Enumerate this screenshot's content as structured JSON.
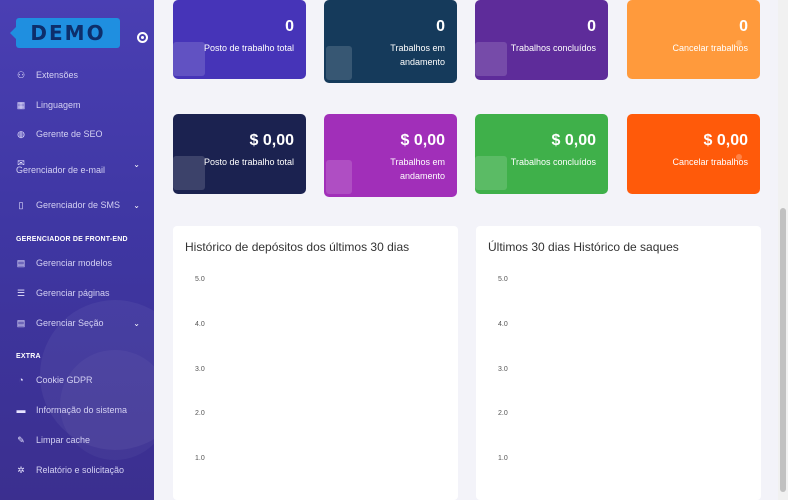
{
  "sidebar": {
    "logo": "DEMO",
    "items": [
      {
        "icon": "puzzle-icon",
        "glyph": "⚇",
        "label": "Extensões"
      },
      {
        "icon": "language-icon",
        "glyph": "▦",
        "label": "Linguagem"
      },
      {
        "icon": "globe-icon",
        "glyph": "◍",
        "label": "Gerente de SEO"
      },
      {
        "icon": "mail-icon",
        "glyph": "✉",
        "label": "Gerenciador de e-mail"
      },
      {
        "icon": "mobile-icon",
        "glyph": "▯",
        "label": "Gerenciador de SMS"
      },
      {
        "icon": "template-icon",
        "glyph": "▤",
        "label": "Gerenciar modelos"
      },
      {
        "icon": "list-icon",
        "glyph": "☰",
        "label": "Gerenciar páginas"
      },
      {
        "icon": "section-icon",
        "glyph": "▤",
        "label": "Gerenciar Seção"
      },
      {
        "icon": "cookie-icon",
        "glyph": "◔",
        "label": "Cookie GDPR"
      },
      {
        "icon": "server-icon",
        "glyph": "▬",
        "label": "Informação do sistema"
      },
      {
        "icon": "broom-icon",
        "glyph": "✎",
        "label": "Limpar cache"
      },
      {
        "icon": "bug-icon",
        "glyph": "✲",
        "label": "Relatório e solicitação"
      }
    ],
    "section_frontend": "GERENCIADOR DE FRONT-END",
    "section_extra": "EXTRA"
  },
  "cards_row1": [
    {
      "value": "0",
      "label": "Posto de trabalho total",
      "color": "#4634b8"
    },
    {
      "value": "0",
      "label": "Trabalhos em andamento",
      "color": "#153a5b"
    },
    {
      "value": "0",
      "label": "Trabalhos concluídos",
      "color": "#5e2c9a"
    },
    {
      "value": "0",
      "label": "Cancelar trabalhos",
      "color": "#ff9a3c"
    }
  ],
  "cards_row2": [
    {
      "value": "$ 0,00",
      "label": "Posto de trabalho total",
      "color": "#1b2250"
    },
    {
      "value": "$ 0,00",
      "label": "Trabalhos em andamento",
      "color": "#a12fb9"
    },
    {
      "value": "$ 0,00",
      "label": "Trabalhos concluídos",
      "color": "#3fb04a"
    },
    {
      "value": "$ 0,00",
      "label": "Cancelar trabalhos",
      "color": "#ff5a0a"
    }
  ],
  "charts": {
    "deposits_title": "Histórico de depósitos dos últimos 30 dias",
    "withdrawals_title": "Últimos 30 dias Histórico de saques",
    "y_ticks": [
      "5.0",
      "4.0",
      "3.0",
      "2.0",
      "1.0"
    ]
  }
}
